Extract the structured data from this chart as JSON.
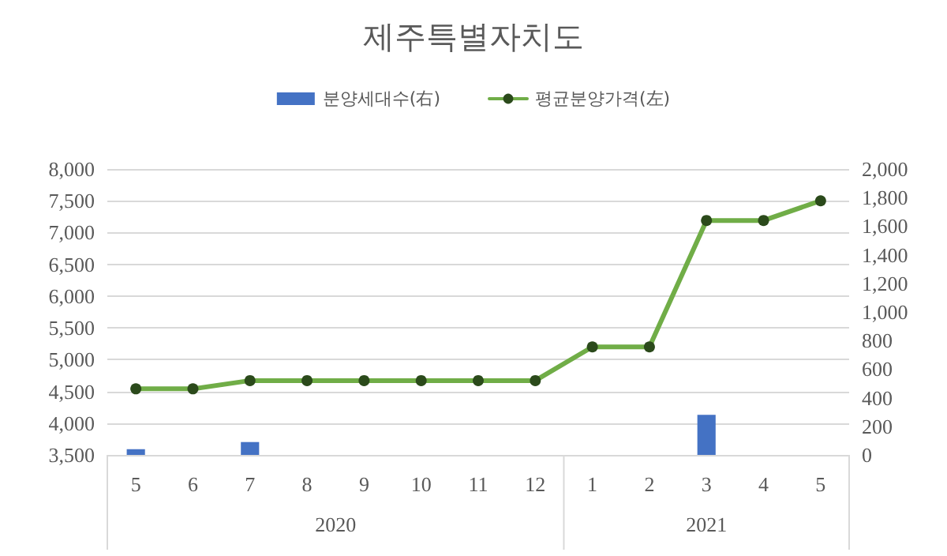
{
  "chart_data": {
    "type": "line",
    "title": "제주특별자치도",
    "categories": [
      "5",
      "6",
      "7",
      "8",
      "9",
      "10",
      "11",
      "12",
      "1",
      "2",
      "3",
      "4",
      "5"
    ],
    "series": [
      {
        "name": "분양세대수(右)",
        "type": "bar",
        "axis": "y2",
        "color": "#4472c4",
        "values": [
          40,
          null,
          90,
          null,
          null,
          null,
          null,
          null,
          null,
          null,
          280,
          null,
          null
        ]
      },
      {
        "name": "평균분양가격(左)",
        "color": "#70ad47",
        "values": [
          4540,
          4540,
          4670,
          4670,
          4670,
          4670,
          4670,
          4670,
          5200,
          5200,
          7190,
          7190,
          7500
        ]
      }
    ],
    "ylim": [
      3500,
      8000
    ],
    "yticks": [
      {
        "value": 3500,
        "label": "3,500"
      },
      {
        "value": 4000,
        "label": "4,000"
      },
      {
        "value": 4500,
        "label": "4,500"
      },
      {
        "value": 5000,
        "label": "5,000"
      },
      {
        "value": 5500,
        "label": "5,500"
      },
      {
        "value": 6000,
        "label": "6,000"
      },
      {
        "value": 6500,
        "label": "6,500"
      },
      {
        "value": 7000,
        "label": "7,000"
      },
      {
        "value": 7500,
        "label": "7,500"
      },
      {
        "value": 8000,
        "label": "8,000"
      }
    ],
    "y2lim": [
      0,
      2000
    ],
    "y2ticks": [
      0,
      200,
      400,
      600,
      800,
      {
        "value": 1000,
        "label": "1,000"
      },
      {
        "value": 1200,
        "label": "1,200"
      },
      {
        "value": 1400,
        "label": "1,400"
      },
      {
        "value": 1600,
        "label": "1,600"
      },
      {
        "value": 1800,
        "label": "1,800"
      },
      {
        "value": 2000,
        "label": "2,000"
      }
    ],
    "annotations": [
      "2020",
      "2021"
    ],
    "grid": "y",
    "legend": "top",
    "marker": "circle",
    "line_style": "solid"
  }
}
